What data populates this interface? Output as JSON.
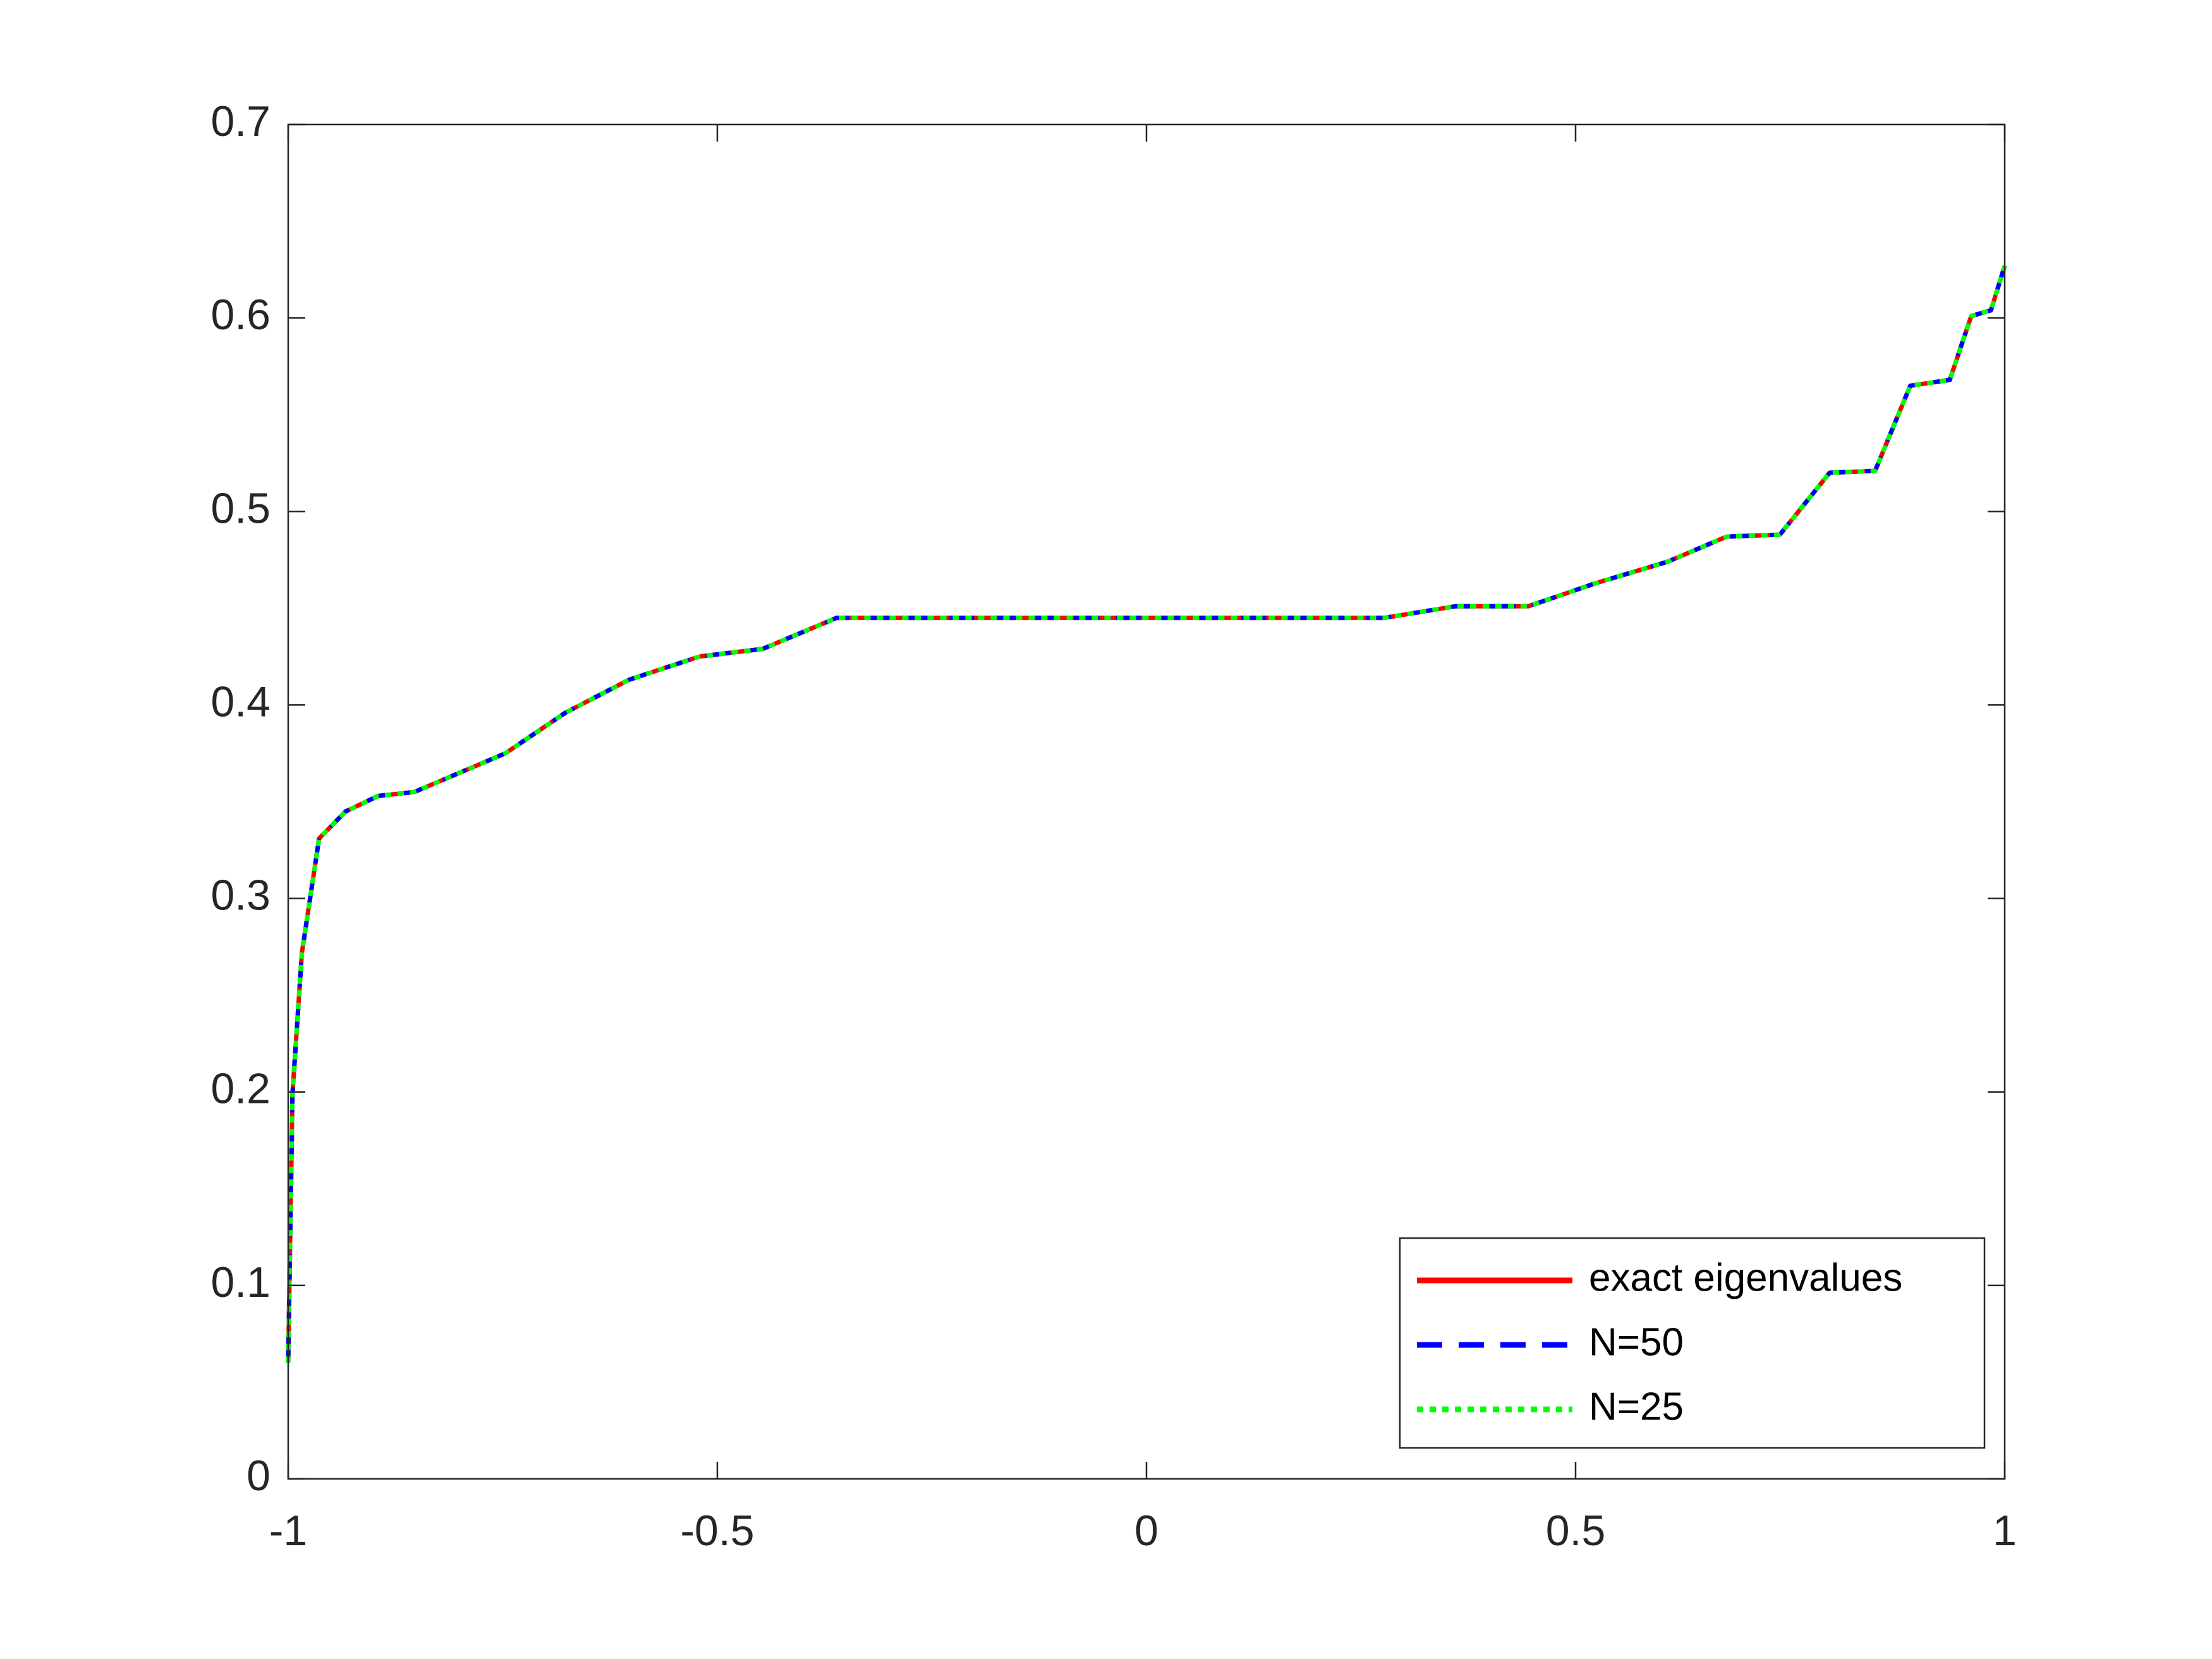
{
  "chart_data": {
    "type": "line",
    "x": [
      -1,
      -0.995,
      -0.984,
      -0.964,
      -0.933,
      -0.895,
      -0.853,
      -0.8,
      -0.747,
      -0.677,
      -0.603,
      -0.521,
      -0.447,
      -0.361,
      0.277,
      0.36,
      0.445,
      0.524,
      0.607,
      0.676,
      0.738,
      0.796,
      0.849,
      0.89,
      0.936,
      0.961,
      0.984,
      1
    ],
    "series": [
      {
        "name": "exact eigenvalues",
        "color": "#ff0000",
        "style": "solid",
        "values": [
          0.06,
          0.199,
          0.272,
          0.331,
          0.345,
          0.353,
          0.355,
          0.365,
          0.375,
          0.396,
          0.413,
          0.425,
          0.429,
          0.445,
          0.445,
          0.451,
          0.451,
          0.463,
          0.474,
          0.487,
          0.488,
          0.52,
          0.521,
          0.565,
          0.568,
          0.601,
          0.604,
          0.627
        ]
      },
      {
        "name": "N=50",
        "color": "#0000ff",
        "style": "dashed",
        "values": [
          0.06,
          0.199,
          0.272,
          0.331,
          0.345,
          0.353,
          0.355,
          0.365,
          0.375,
          0.396,
          0.413,
          0.425,
          0.429,
          0.445,
          0.445,
          0.451,
          0.451,
          0.463,
          0.474,
          0.487,
          0.488,
          0.52,
          0.521,
          0.565,
          0.568,
          0.601,
          0.604,
          0.627
        ]
      },
      {
        "name": "N=25",
        "color": "#00ff00",
        "style": "dotted",
        "values": [
          0.06,
          0.199,
          0.272,
          0.331,
          0.345,
          0.353,
          0.355,
          0.365,
          0.375,
          0.396,
          0.413,
          0.425,
          0.429,
          0.445,
          0.445,
          0.451,
          0.451,
          0.463,
          0.474,
          0.487,
          0.488,
          0.52,
          0.521,
          0.565,
          0.568,
          0.601,
          0.604,
          0.627
        ]
      }
    ],
    "xlim": [
      -1,
      1
    ],
    "xticks": [
      -1,
      -0.5,
      0,
      0.5,
      1
    ],
    "ylim": [
      0,
      0.7
    ],
    "yticks": [
      0,
      0.1,
      0.2,
      0.3,
      0.4,
      0.5,
      0.6,
      0.7
    ],
    "grid": false,
    "legend": "lower right"
  }
}
